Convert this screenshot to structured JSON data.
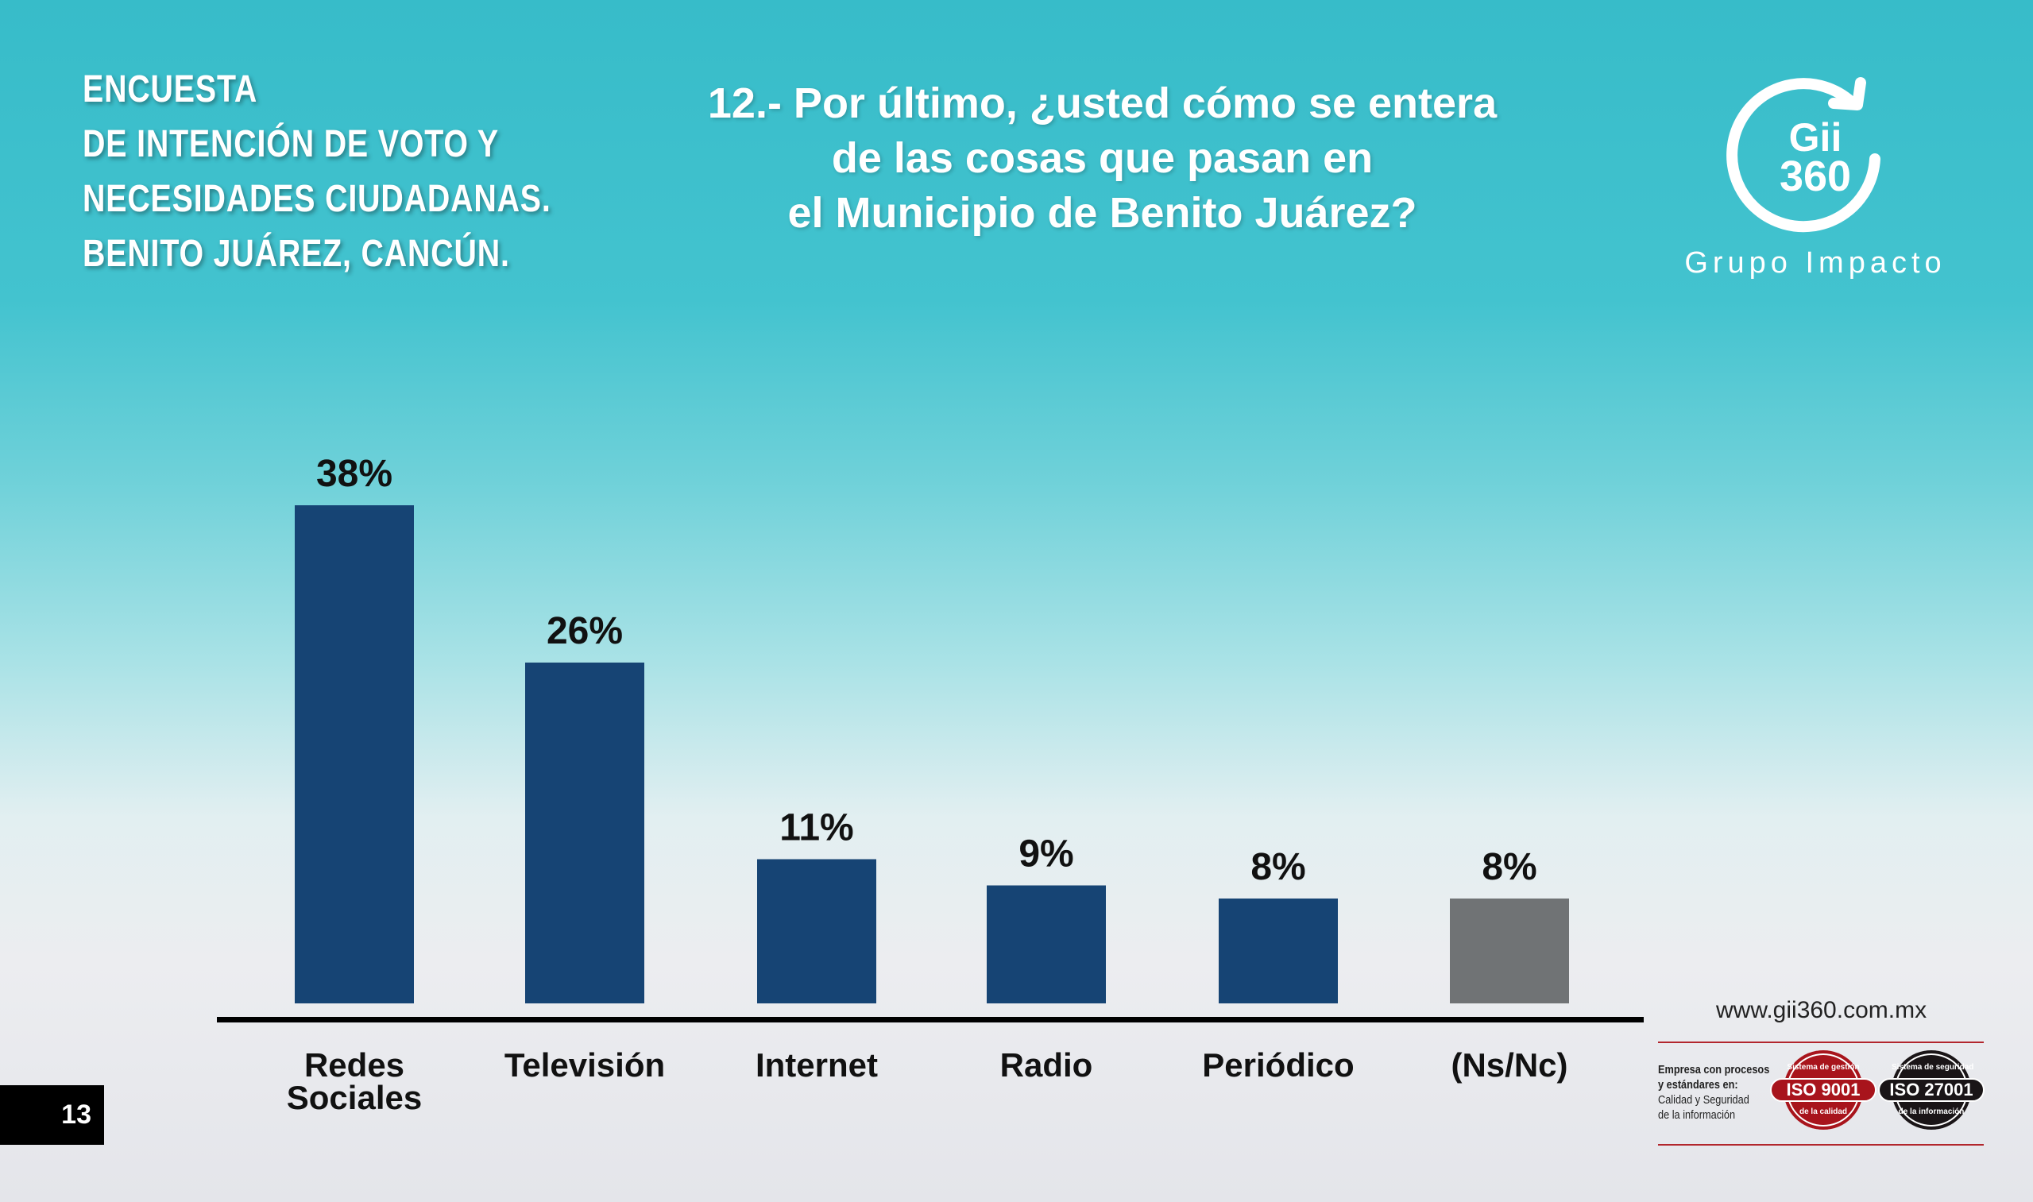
{
  "survey_title": [
    "ENCUESTA",
    "DE INTENCIÓN DE VOTO Y",
    "NECESIDADES CIUDADANAS.",
    "BENITO JUÁREZ, CANCÚN."
  ],
  "question": [
    "12.- Por último, ¿usted cómo se entera",
    "de las cosas que pasan en",
    "el Municipio de Benito Juárez?"
  ],
  "logo": {
    "text_top": "Gii",
    "text_bottom": "360",
    "brand": "Grupo Impacto"
  },
  "page_number": "13",
  "footer": {
    "url": "www.gii360.com.mx",
    "iso_lines": [
      "Empresa con procesos",
      "y estándares en:",
      "Calidad y Seguridad",
      "de la información"
    ],
    "badges": [
      {
        "label": "ISO 9001",
        "top": "Sistema de gestión",
        "bottom": "de la calidad",
        "color": "#a8141c"
      },
      {
        "label": "ISO 27001",
        "top": "Sistema de seguridad",
        "bottom": "de la información",
        "color": "#1a1517"
      }
    ]
  },
  "chart_data": {
    "type": "bar",
    "categories": [
      "Redes Sociales",
      "Televisión",
      "Internet",
      "Radio",
      "Periódico",
      "(Ns/Nc)"
    ],
    "category_lines": [
      [
        "Redes",
        "Sociales"
      ],
      [
        "Televisión"
      ],
      [
        "Internet"
      ],
      [
        "Radio"
      ],
      [
        "Periódico"
      ],
      [
        "(Ns/Nc)"
      ]
    ],
    "values": [
      38,
      26,
      11,
      9,
      8,
      8
    ],
    "data_labels": [
      "38%",
      "26%",
      "11%",
      "9%",
      "8%",
      "8%"
    ],
    "colors": [
      "#164474",
      "#164474",
      "#164474",
      "#164474",
      "#164474",
      "#707375"
    ],
    "ylim": [
      0,
      40
    ],
    "grid": false,
    "title": "",
    "xlabel": "",
    "ylabel": ""
  }
}
